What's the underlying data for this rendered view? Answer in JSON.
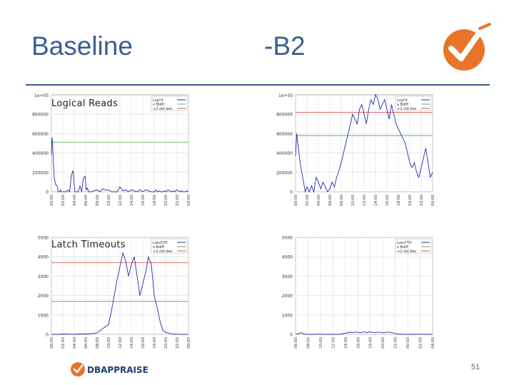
{
  "slide": {
    "title_left": "Baseline",
    "title_right": "-B2",
    "page_number": "51",
    "brand": {
      "accent_color": "#e8742a",
      "title_color": "#3b5f8f",
      "footer_logo_text": "DBAPPRAISE"
    }
  },
  "labels": {
    "logical_reads": "Logical Reads",
    "latch_timeouts": "Latch Timeouts"
  },
  "chart_data": [
    {
      "id": "baseline-logical-reads",
      "type": "line",
      "title": "",
      "axis_exponent": "1e+05",
      "legend": [
        "Log*d",
        "x Bdiff",
        "+2 std dev"
      ],
      "legend_position": "top-right",
      "ylim": [
        0,
        1000000
      ],
      "yticks": [
        "0",
        "200000",
        "400000",
        "600000",
        "800000"
      ],
      "ytick_values": [
        0,
        200000,
        400000,
        600000,
        800000
      ],
      "xticks": [
        "00:00",
        "02:00",
        "04:00",
        "06:00",
        "08:00",
        "10:00",
        "12:00",
        "14:00",
        "16:00",
        "18:00",
        "20:00",
        "22:00",
        "00:00"
      ],
      "lines": [
        {
          "name": "x Bdiff",
          "value": 510000,
          "color": "#5ab65a"
        }
      ],
      "series": [
        {
          "name": "Log*d",
          "color": "#2a2aaa",
          "x": [
            0,
            0.1,
            0.2,
            0.3,
            0.5,
            0.7,
            1,
            1.2,
            1.4,
            1.6,
            1.8,
            2,
            2.3,
            2.6,
            2.9,
            3.2,
            3.5,
            3.8,
            4.1,
            4.4,
            4.7,
            5,
            5.3,
            5.6,
            5.9,
            6.1,
            6.3,
            6.5,
            6.8,
            7,
            7.5,
            8,
            8.5,
            9,
            9.5,
            10,
            10.5,
            11,
            11.5,
            12,
            12.5,
            13,
            13.5,
            14,
            14.5,
            15,
            15.5,
            16,
            16.5,
            17,
            17.5,
            18,
            18.3,
            18.6,
            18.9,
            19.2,
            19.5,
            19.8,
            20.1,
            20.4,
            20.7,
            21,
            21.3,
            21.6,
            21.9,
            22.2,
            22.5,
            22.8,
            23.1,
            23.4,
            23.7,
            24
          ],
          "y": [
            380000,
            560000,
            500000,
            350000,
            150000,
            80000,
            60000,
            0,
            0,
            20000,
            0,
            0,
            0,
            0,
            20000,
            0,
            170000,
            220000,
            0,
            0,
            0,
            60000,
            0,
            140000,
            160000,
            20000,
            40000,
            0,
            0,
            0,
            10000,
            20000,
            0,
            30000,
            20000,
            20000,
            0,
            0,
            0,
            50000,
            10000,
            20000,
            0,
            20000,
            10000,
            0,
            20000,
            0,
            20000,
            10000,
            0,
            0,
            20000,
            0,
            10000,
            0,
            0,
            10000,
            0,
            20000,
            10000,
            0,
            10000,
            0,
            20000,
            10000,
            0,
            10000,
            0,
            0,
            10000,
            0
          ]
        }
      ]
    },
    {
      "id": "b2-logical-reads",
      "type": "line",
      "title": "",
      "axis_exponent": "1e+05",
      "legend": [
        "Log*d",
        "x Bdiff",
        "+2 std dev"
      ],
      "legend_position": "top-right",
      "ylim": [
        0,
        1000000
      ],
      "yticks": [
        "0",
        "200000",
        "400000",
        "600000",
        "800000"
      ],
      "ytick_values": [
        0,
        200000,
        400000,
        600000,
        800000
      ],
      "xticks": [
        "00:00",
        "02:00",
        "04:00",
        "06:00",
        "08:00",
        "10:00",
        "12:00",
        "14:00",
        "16:00",
        "18:00",
        "20:00",
        "22:00",
        "00:00"
      ],
      "lines": [
        {
          "name": "+2 std dev",
          "value": 820000,
          "color": "#e05050"
        },
        {
          "name": "x Bdiff",
          "value": 580000,
          "color": "#5ab65a"
        }
      ],
      "series": [
        {
          "name": "Log*d",
          "color": "#2a2aaa",
          "x": [
            0,
            0.2,
            0.5,
            0.8,
            1.1,
            1.4,
            1.7,
            2,
            2.4,
            2.8,
            3.2,
            3.6,
            4,
            4.4,
            4.8,
            5.2,
            5.6,
            6,
            6.4,
            6.8,
            7.2,
            7.6,
            8,
            8.4,
            8.8,
            9.2,
            9.6,
            10,
            10.4,
            10.8,
            11.2,
            11.6,
            12,
            12.4,
            12.8,
            13.2,
            13.6,
            14,
            14.4,
            14.8,
            15.2,
            15.6,
            16,
            16.4,
            16.8,
            17.2,
            17.6,
            18,
            18.4,
            18.8,
            19.2,
            19.6,
            20,
            20.4,
            20.8,
            21.2,
            21.6,
            22,
            22.4,
            22.8,
            23.2,
            23.6,
            24
          ],
          "y": [
            370000,
            600000,
            450000,
            300000,
            200000,
            100000,
            0,
            50000,
            0,
            60000,
            0,
            150000,
            100000,
            30000,
            100000,
            50000,
            0,
            30000,
            100000,
            50000,
            150000,
            220000,
            300000,
            400000,
            500000,
            600000,
            700000,
            800000,
            750000,
            700000,
            850000,
            900000,
            800000,
            700000,
            850000,
            950000,
            900000,
            1000000,
            960000,
            850000,
            900000,
            950000,
            850000,
            750000,
            900000,
            800000,
            700000,
            650000,
            600000,
            550000,
            500000,
            400000,
            300000,
            250000,
            300000,
            200000,
            150000,
            250000,
            350000,
            450000,
            300000,
            150000,
            200000
          ]
        }
      ]
    },
    {
      "id": "baseline-latch-timeouts",
      "type": "line",
      "title": "",
      "legend": [
        "LatchTO",
        "x Bdiff",
        "+2 std dev"
      ],
      "legend_position": "top-right",
      "ylim": [
        0,
        5000
      ],
      "yticks": [
        "0",
        "1000",
        "2000",
        "3000",
        "4000",
        "5000"
      ],
      "ytick_values": [
        0,
        1000,
        2000,
        3000,
        4000,
        5000
      ],
      "xticks": [
        "00:00",
        "02:00",
        "04:00",
        "06:00",
        "08:00",
        "10:00",
        "12:00",
        "14:00",
        "16:00",
        "18:00",
        "20:00",
        "22:00",
        "00:00"
      ],
      "lines": [
        {
          "name": "+2 std dev",
          "value": 3700,
          "color": "#e05050"
        },
        {
          "name": "x Bdiff",
          "value": 1700,
          "color": "#5ab65a"
        }
      ],
      "series": [
        {
          "name": "LatchTO",
          "color": "#2a2aaa",
          "x": [
            0,
            1,
            2,
            3,
            4,
            5,
            6,
            7,
            8,
            9,
            10,
            10.5,
            11,
            11.5,
            12,
            12.5,
            13,
            13.5,
            14,
            14.5,
            15,
            15.5,
            16,
            16.5,
            17,
            17.5,
            18,
            18.5,
            19,
            19.5,
            20,
            21,
            22,
            23,
            24
          ],
          "y": [
            0,
            0,
            20,
            10,
            0,
            30,
            20,
            40,
            80,
            300,
            500,
            1200,
            2000,
            2800,
            3500,
            4200,
            3800,
            3000,
            3600,
            4000,
            3000,
            2000,
            2600,
            3200,
            4000,
            3600,
            2000,
            1400,
            700,
            200,
            100,
            30,
            10,
            0,
            0
          ]
        }
      ]
    },
    {
      "id": "b2-latch-timeouts",
      "type": "line",
      "title": "",
      "legend": [
        "LatchTO",
        "x Bdiff",
        "+2 std dev"
      ],
      "legend_position": "top-right",
      "ylim": [
        0,
        5000
      ],
      "yticks": [
        "0",
        "1000",
        "2000",
        "3000",
        "4000",
        "5000"
      ],
      "ytick_values": [
        0,
        1000,
        2000,
        3000,
        4000,
        5000
      ],
      "xticks": [
        "06:00",
        "08:00",
        "10:00",
        "12:00",
        "14:00",
        "16:00",
        "18:00",
        "20:00",
        "22:00",
        "00:00",
        "02:00",
        "04:00"
      ],
      "lines": [],
      "series": [
        {
          "name": "LatchTO",
          "color": "#2a2aaa",
          "x": [
            0,
            0.5,
            1,
            1.5,
            2,
            3,
            4,
            5,
            6,
            7,
            7.5,
            8,
            8.5,
            9,
            9.5,
            10,
            10.5,
            11,
            11.5,
            12,
            12.5,
            13,
            13.5,
            14,
            14.5,
            15,
            15.5,
            16,
            16.5,
            17,
            17.5,
            18,
            19,
            20,
            21,
            22,
            23,
            24
          ],
          "y": [
            0,
            40,
            80,
            20,
            0,
            0,
            10,
            0,
            0,
            0,
            0,
            20,
            50,
            80,
            110,
            90,
            120,
            100,
            80,
            140,
            90,
            130,
            100,
            90,
            120,
            100,
            80,
            120,
            100,
            80,
            40,
            20,
            0,
            0,
            0,
            10,
            0,
            0
          ]
        }
      ]
    }
  ]
}
